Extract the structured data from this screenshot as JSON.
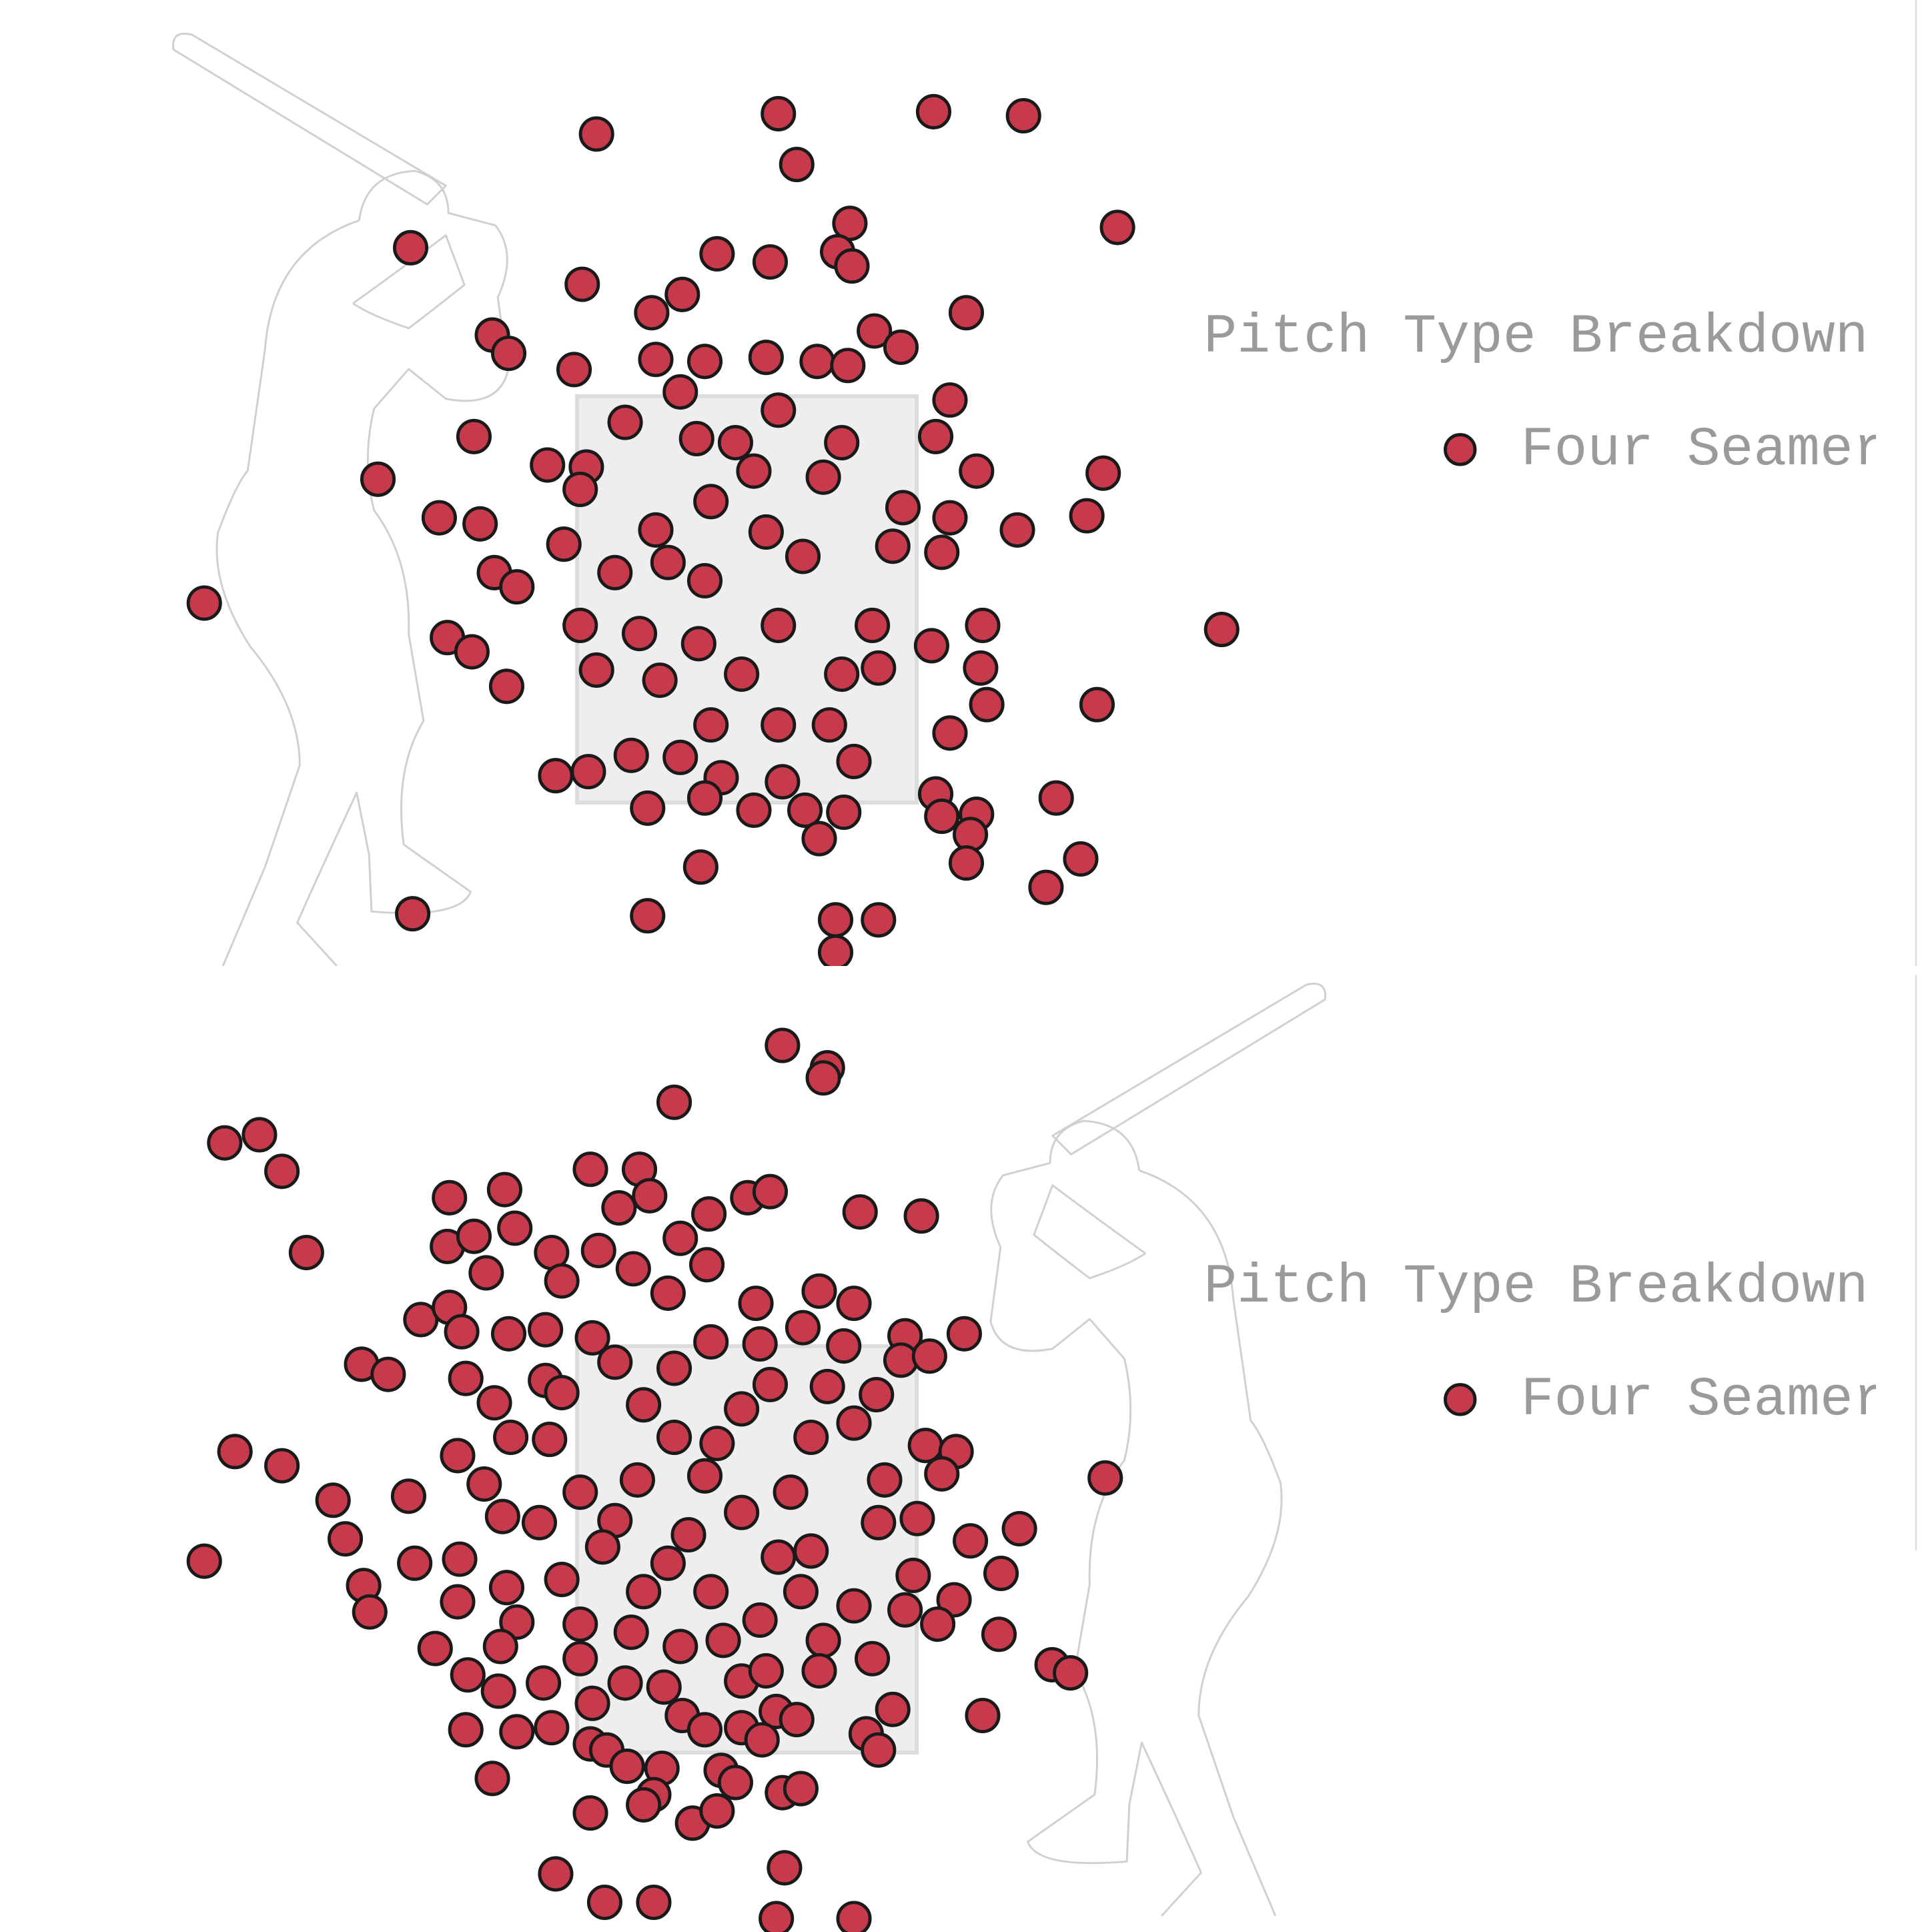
{
  "chart_data": [
    {
      "type": "scatter",
      "legend_title": "Pitch Type Breakdown",
      "xlim": [
        -3.65,
        2.4
      ],
      "ylim": [
        0.65,
        5.45
      ],
      "series": [
        {
          "name": "Four Seamer",
          "color": "#c73a4b",
          "x": [
            -0.73,
            0.16,
            0.92,
            1.36,
            0.25,
            1.82,
            0.51,
            -1.64,
            -0.14,
            0.12,
            0.45,
            0.52,
            -0.8,
            -0.46,
            -0.31,
            1.08,
            -1.24,
            -1.16,
            0.63,
            0.76,
            -0.84,
            -0.44,
            -0.2,
            0.1,
            0.35,
            0.5,
            -0.32,
            1.0,
            0.16,
            -0.59,
            -1.33,
            -0.97,
            -1.8,
            0.93,
            1.13,
            1.75,
            1.67,
            1.33,
            -0.24,
            -0.05,
            0.47,
            -0.78,
            0.04,
            0.38,
            -1.5,
            -1.3,
            -0.81,
            -0.17,
            0.77,
            1.0,
            -2.65,
            -1.23,
            -1.12,
            -0.89,
            -0.44,
            0.1,
            0.72,
            0.96,
            -0.64,
            -0.38,
            -0.2,
            0.28,
            -1.46,
            -1.34,
            -1.17,
            -0.81,
            -0.52,
            -0.23,
            0.16,
            0.62,
            0.91,
            1.16,
            1.15,
            2.33,
            -0.73,
            -0.42,
            -0.02,
            0.47,
            0.65,
            1.18,
            1.72,
            -0.17,
            0.16,
            0.41,
            1.0,
            -0.93,
            -0.77,
            -0.56,
            -0.32,
            -0.12,
            0.18,
            0.53,
            0.93,
            1.52,
            -0.48,
            -0.2,
            0.04,
            0.29,
            0.48,
            0.96,
            1.13,
            0.36,
            1.1,
            1.08,
            1.64,
            -0.22,
            1.47,
            -1.63,
            -0.48,
            0.44,
            0.65,
            0.44
          ],
          "y": [
            4.79,
            4.89,
            4.9,
            4.88,
            4.64,
            4.33,
            4.35,
            4.23,
            4.2,
            4.16,
            4.21,
            4.14,
            4.05,
            3.91,
            4.0,
            3.91,
            3.8,
            3.71,
            3.82,
            3.74,
            3.63,
            3.68,
            3.67,
            3.69,
            3.67,
            3.65,
            3.52,
            3.48,
            3.43,
            3.37,
            3.3,
            3.16,
            3.09,
            3.3,
            3.13,
            3.12,
            2.91,
            2.84,
            3.29,
            3.27,
            3.27,
            3.15,
            3.13,
            3.1,
            2.9,
            2.87,
            3.04,
            2.98,
            2.95,
            2.9,
            2.48,
            2.63,
            2.56,
            2.77,
            2.84,
            2.83,
            2.76,
            2.73,
            2.63,
            2.68,
            2.59,
            2.71,
            2.31,
            2.24,
            2.07,
            2.37,
            2.33,
            2.28,
            2.37,
            2.37,
            2.27,
            2.37,
            2.16,
            2.35,
            2.15,
            2.1,
            2.13,
            2.13,
            2.16,
            1.98,
            1.98,
            1.88,
            1.88,
            1.88,
            1.84,
            1.63,
            1.65,
            1.73,
            1.72,
            1.62,
            1.6,
            1.7,
            1.54,
            1.52,
            1.47,
            1.52,
            1.46,
            1.46,
            1.45,
            1.43,
            1.44,
            1.32,
            1.34,
            1.2,
            1.22,
            1.18,
            1.08,
            0.95,
            0.94,
            0.92,
            0.92,
            0.76
          ]
        }
      ]
    },
    {
      "type": "scatter",
      "legend_title": "Pitch Type Breakdown",
      "xlim": [
        -3.65,
        2.4
      ],
      "ylim": [
        0.65,
        5.45
      ],
      "series": [
        {
          "name": "Four Seamer",
          "color": "#c73a4b",
          "x": [
            0.18,
            0.4,
            0.38,
            -0.35,
            -2.55,
            -2.38,
            -2.27,
            -2.15,
            -1.45,
            -1.18,
            -0.76,
            -0.52,
            -0.47,
            -0.62,
            -0.18,
            0.01,
            0.12,
            0.56,
            0.86,
            -1.13,
            -1.46,
            -1.33,
            -1.27,
            -0.95,
            -0.72,
            -0.32,
            -0.19,
            -0.55,
            -0.9,
            -0.38,
            0.36,
            0.53,
            0.05,
            -1.59,
            -1.45,
            -1.39,
            -1.16,
            -0.98,
            -0.75,
            0.28,
            0.48,
            0.78,
            1.07,
            -1.88,
            -1.75,
            -1.37,
            -0.98,
            -0.17,
            0.07,
            0.76,
            0.9,
            0.12,
            0.4,
            0.64,
            -0.35,
            -0.64,
            -1.23,
            -0.9,
            -0.5,
            -0.02,
            0.53,
            -2.5,
            -2.27,
            -1.41,
            -1.15,
            -0.96,
            -0.35,
            -0.14,
            0.32,
            0.88,
            1.03,
            1.76,
            -2.02,
            -1.65,
            -1.28,
            -0.81,
            -0.53,
            -0.2,
            0.22,
            0.68,
            0.96,
            -1.96,
            -1.19,
            -1.01,
            -0.64,
            -0.28,
            -0.02,
            0.65,
            0.84,
            1.34,
            1.1,
            -2.65,
            -1.62,
            -1.4,
            -0.7,
            -0.38,
            0.16,
            0.32,
            1.25,
            0.82,
            -1.87,
            -1.84,
            -1.41,
            -1.17,
            -0.9,
            -0.5,
            -0.17,
            0.27,
            1.02,
            0.53,
            0.78,
            -1.12,
            -0.81,
            -0.56,
            0.07,
            0.38,
            0.94,
            1.24,
            -1.52,
            -1.2,
            -0.81,
            -0.32,
            -0.11,
            0.62,
            1.5,
            1.59,
            -1.36,
            -0.99,
            -0.59,
            -0.4,
            -0.02,
            0.1,
            0.36,
            -1.21,
            -0.75,
            1.16,
            0.72,
            -1.37,
            -1.12,
            -0.95,
            -0.31,
            -0.2,
            -0.02,
            0.15,
            0.25,
            0.59,
            -0.76,
            -0.68,
            0.08,
            0.65,
            -1.24,
            -0.58,
            -0.41,
            -0.12,
            -0.05,
            0.18,
            0.27,
            -0.45,
            -0.5,
            -0.76,
            -0.26,
            -0.14,
            -0.93,
            0.19,
            -0.69,
            -0.45,
            0.15,
            0.53
          ],
          "y": [
            4.98,
            4.87,
            4.82,
            4.7,
            4.5,
            4.54,
            4.36,
            3.96,
            4.23,
            4.27,
            4.37,
            4.37,
            4.24,
            4.18,
            4.15,
            4.23,
            4.26,
            4.16,
            4.14,
            4.08,
            3.99,
            4.04,
            3.86,
            3.96,
            3.97,
            4.03,
            3.9,
            3.88,
            3.82,
            3.76,
            3.77,
            3.71,
            3.71,
            3.63,
            3.69,
            3.57,
            3.56,
            3.58,
            3.54,
            3.59,
            3.5,
            3.55,
            3.56,
            3.41,
            3.36,
            3.34,
            3.33,
            3.52,
            3.51,
            3.43,
            3.45,
            3.31,
            3.3,
            3.26,
            3.39,
            3.42,
            3.22,
            3.27,
            3.21,
            3.19,
            3.12,
            2.98,
            2.91,
            2.96,
            3.05,
            3.04,
            3.05,
            3.02,
            3.05,
            3.01,
            2.98,
            2.85,
            2.74,
            2.76,
            2.82,
            2.78,
            2.84,
            2.86,
            2.78,
            2.84,
            2.87,
            2.55,
            2.66,
            2.63,
            2.64,
            2.57,
            2.68,
            2.63,
            2.65,
            2.6,
            2.54,
            2.44,
            2.43,
            2.45,
            2.51,
            2.43,
            2.46,
            2.49,
            2.38,
            2.37,
            2.32,
            2.19,
            2.24,
            2.31,
            2.35,
            2.29,
            2.29,
            2.29,
            2.25,
            2.22,
            2.2,
            2.14,
            2.13,
            2.09,
            2.15,
            2.05,
            2.13,
            2.08,
            2.01,
            2.02,
            1.96,
            2.02,
            2.05,
            1.96,
            1.93,
            1.89,
            1.88,
            1.84,
            1.84,
            1.82,
            1.85,
            1.9,
            1.9,
            1.8,
            1.74,
            1.68,
            1.71,
            1.61,
            1.6,
            1.62,
            1.68,
            1.61,
            1.62,
            1.7,
            1.66,
            1.59,
            1.54,
            1.51,
            1.56,
            1.51,
            1.37,
            1.43,
            1.42,
            1.41,
            1.35,
            1.3,
            1.32,
            1.29,
            1.24,
            1.2,
            1.15,
            1.21,
            0.9,
            0.93,
            0.76,
            0.76,
            0.68,
            0.68
          ]
        }
      ]
    }
  ]
}
